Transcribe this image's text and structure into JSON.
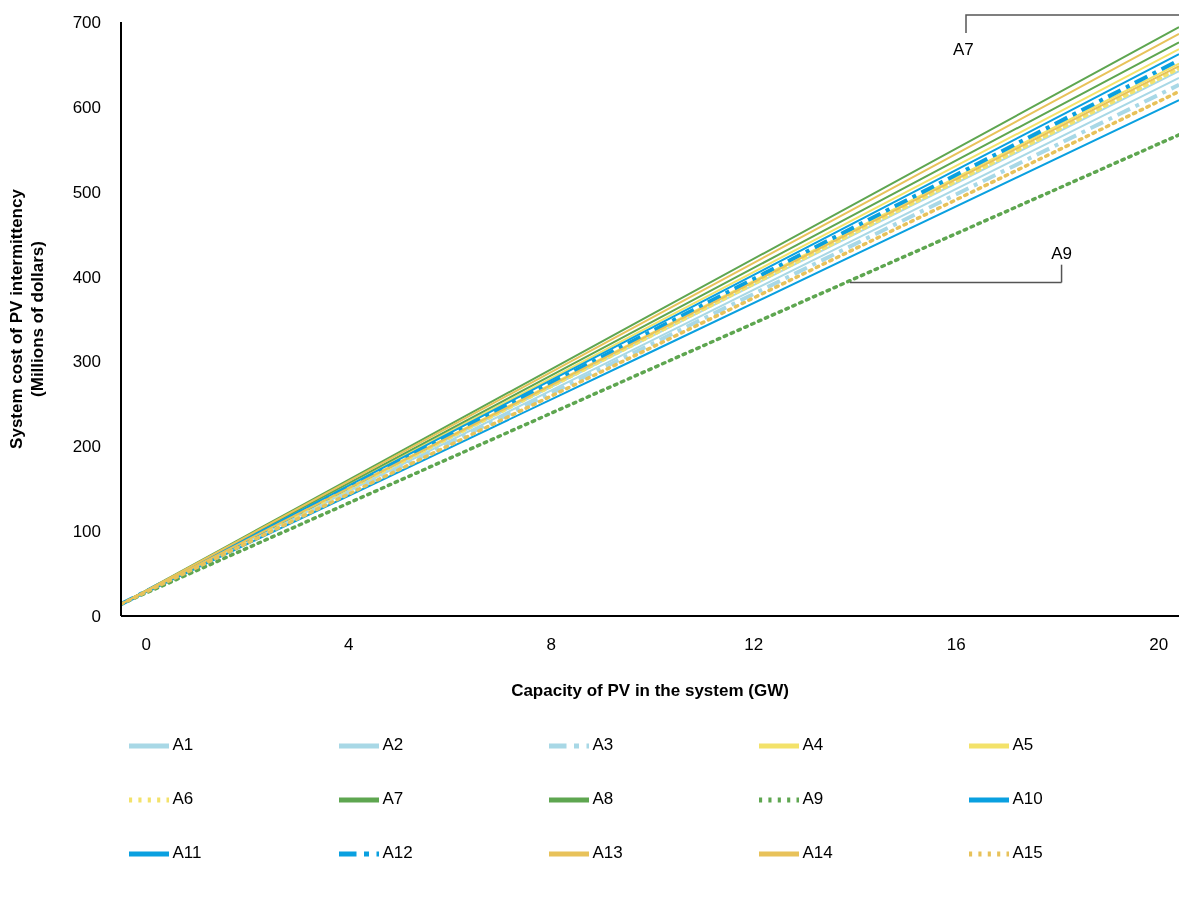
{
  "chart_data": {
    "type": "line",
    "xlabel": "Capacity of PV in the system (GW)",
    "ylabel": "System cost of PV intermittency\n(Millions of dollars)",
    "x": [
      -0.5,
      10,
      20.4
    ],
    "xlim": [
      -0.5,
      20.4
    ],
    "xticks": [
      0,
      4,
      8,
      12,
      16,
      20
    ],
    "ylim": [
      0,
      700
    ],
    "yticks": [
      0,
      100,
      200,
      300,
      400,
      500,
      600,
      700
    ],
    "legend": "bottom",
    "marker": "none",
    "annotations": [
      "A7",
      {
        "text": "A9",
        "x": 13.9,
        "y": 393
      }
    ],
    "series": [
      {
        "name": "A1",
        "color": "#a8d8e6",
        "line_style": "solid",
        "values": [
          14,
          330,
          642
        ]
      },
      {
        "name": "A2",
        "color": "#a8d8e6",
        "line_style": "solid",
        "values": [
          14,
          325,
          634
        ]
      },
      {
        "name": "A3",
        "color": "#a8d8e6",
        "line_style": "dashdot",
        "values": [
          14,
          321,
          626
        ]
      },
      {
        "name": "A4",
        "color": "#f3e26a",
        "line_style": "solid",
        "values": [
          14,
          334,
          651
        ]
      },
      {
        "name": "A5",
        "color": "#f3e26a",
        "line_style": "solid",
        "values": [
          14,
          343,
          668
        ]
      },
      {
        "name": "A6",
        "color": "#f3e26a",
        "line_style": "dotted",
        "values": [
          14,
          331,
          645
        ]
      },
      {
        "name": "A7",
        "color": "#5ea650",
        "line_style": "solid",
        "values": [
          14,
          356,
          694
        ]
      },
      {
        "name": "A8",
        "color": "#5ea650",
        "line_style": "solid",
        "values": [
          14,
          347,
          676
        ]
      },
      {
        "name": "A9",
        "color": "#5ea650",
        "line_style": "dotted",
        "values": [
          14,
          292,
          567
        ]
      },
      {
        "name": "A10",
        "color": "#0aa0e0",
        "line_style": "solid",
        "values": [
          14,
          312,
          608
        ]
      },
      {
        "name": "A11",
        "color": "#0aa0e0",
        "line_style": "solid",
        "values": [
          14,
          340,
          662
        ]
      },
      {
        "name": "A12",
        "color": "#0aa0e0",
        "line_style": "dashdot",
        "values": [
          14,
          336,
          655
        ]
      },
      {
        "name": "A13",
        "color": "#e8c25a",
        "line_style": "solid",
        "values": [
          14,
          333,
          648
        ]
      },
      {
        "name": "A14",
        "color": "#e8c25a",
        "line_style": "solid",
        "values": [
          14,
          352,
          686
        ]
      },
      {
        "name": "A15",
        "color": "#e8c25a",
        "line_style": "dotted",
        "values": [
          14,
          317,
          618
        ]
      }
    ]
  }
}
